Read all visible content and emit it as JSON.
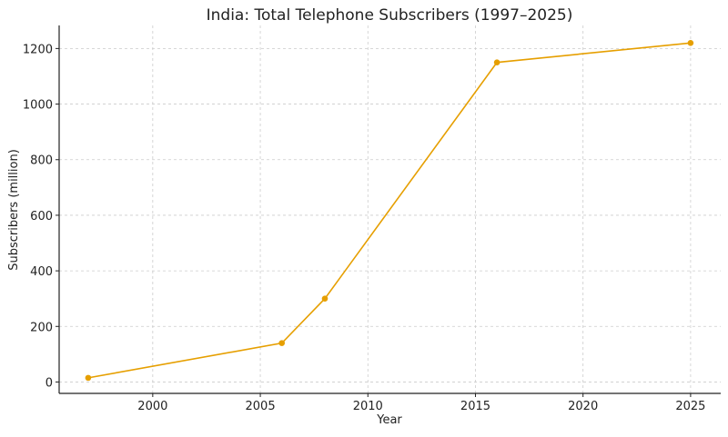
{
  "chart_data": {
    "type": "line",
    "title": "India: Total Telephone Subscribers (1997–2025)",
    "xlabel": "Year",
    "ylabel": "Subscribers (million)",
    "x": [
      1997,
      2006,
      2008,
      2016,
      2025
    ],
    "series": [
      {
        "values": [
          15,
          140,
          300,
          1150,
          1220
        ],
        "color": "#E69F00",
        "marker": "circle"
      }
    ],
    "xlim": [
      1995.65,
      2026.4
    ],
    "ylim": [
      -41,
      1283
    ],
    "xticks": [
      2000,
      2005,
      2010,
      2015,
      2020,
      2025
    ],
    "yticks": [
      0,
      200,
      400,
      600,
      800,
      1000,
      1200
    ],
    "grid": true,
    "grid_style": "dashed",
    "legend": "none"
  }
}
